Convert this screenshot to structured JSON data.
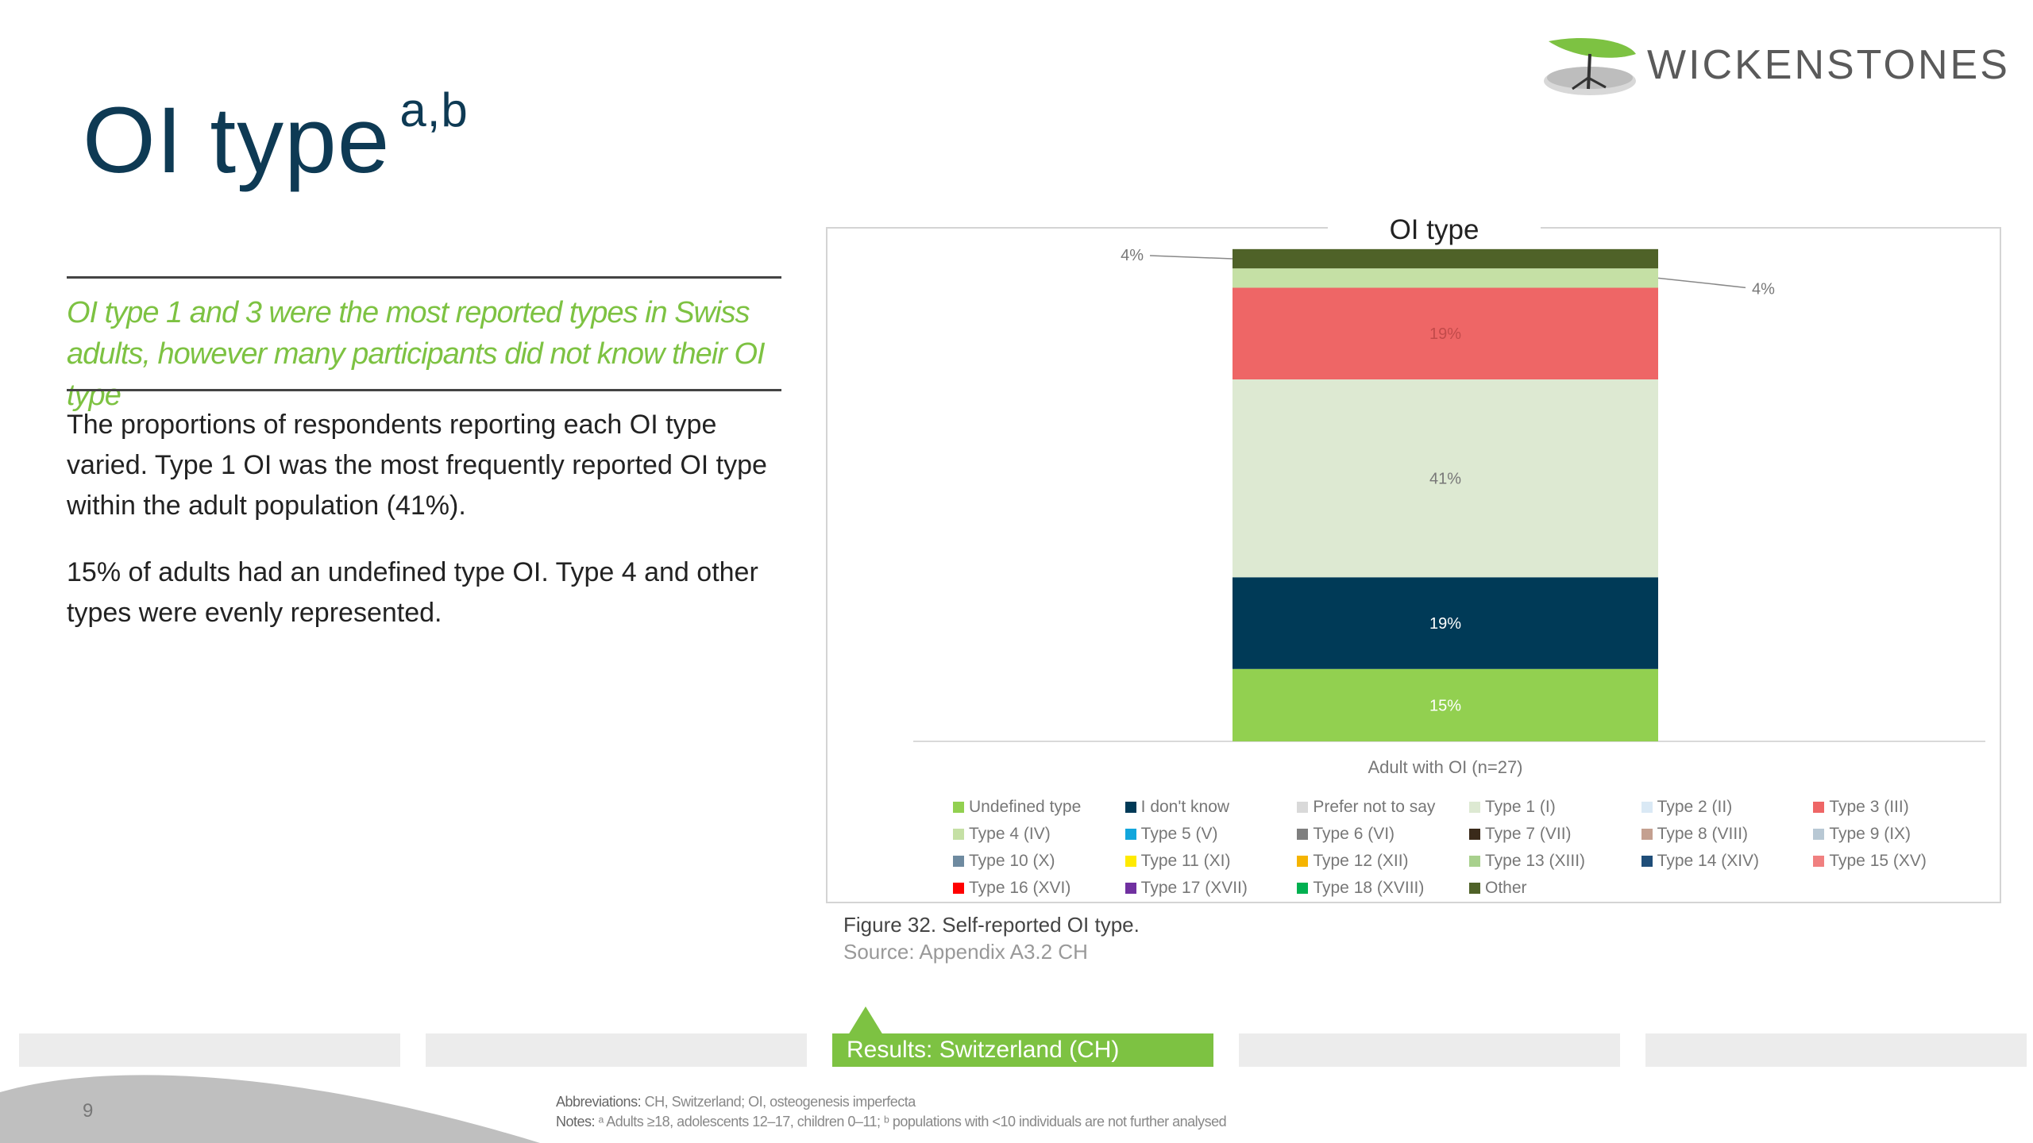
{
  "title": {
    "main": "OI type",
    "superscript": "a,b"
  },
  "logo": {
    "name": "WICKENSTONES"
  },
  "subheading": "OI type 1 and 3 were the most reported types in Swiss adults, however many participants did not know their OI type",
  "paragraphs": [
    "The proportions of respondents reporting each OI type varied. Type 1 OI was the most frequently reported OI type within the adult population (41%).",
    "15% of adults had an undefined type OI. Type 4 and other types were evenly represented."
  ],
  "figure": {
    "caption": "Figure 32. Self-reported OI type.",
    "source": "Source: Appendix A3.2 CH"
  },
  "nav": {
    "segments": [
      "",
      "",
      "Results: Switzerland (CH)",
      "",
      ""
    ],
    "active_index": 2
  },
  "footer": {
    "page_number": "9",
    "abbreviations_label": "Abbreviations:",
    "abbreviations_text": "CH, Switzerland; OI, osteogenesis imperfecta",
    "notes_label": "Notes:",
    "notes_text": "ᵃ Adults ≥18, adolescents 12–17, children 0–11; ᵇ populations with <10 individuals are not further analysed"
  },
  "chart_data": {
    "type": "bar",
    "stacked": true,
    "title": "OI type",
    "categories": [
      "Adult with OI (n=27)"
    ],
    "ylim": [
      0,
      100
    ],
    "series": [
      {
        "name": "Undefined type",
        "color": "#92d050",
        "values": [
          15
        ],
        "label": "15%",
        "label_color": "#ffffff"
      },
      {
        "name": "I don't know",
        "color": "#003a57",
        "values": [
          19
        ],
        "label": "19%",
        "label_color": "#ffffff"
      },
      {
        "name": "Prefer not to say",
        "color": "#d9d9d9",
        "values": [
          0
        ],
        "label": ""
      },
      {
        "name": "Type 1 (I)",
        "color": "#dde9d2",
        "values": [
          41
        ],
        "label": "41%",
        "label_color": "#777777"
      },
      {
        "name": "Type 2 (II)",
        "color": "#dae9f5",
        "values": [
          0
        ],
        "label": ""
      },
      {
        "name": "Type 3 (III)",
        "color": "#ee6666",
        "values": [
          19
        ],
        "label": "19%",
        "label_color": "#c24a4a"
      },
      {
        "name": "Type 4 (IV)",
        "color": "#c5e0a5",
        "values": [
          4
        ],
        "label": "4%",
        "label_side": "right"
      },
      {
        "name": "Type 5 (V)",
        "color": "#12a6dc",
        "values": [
          0
        ],
        "label": ""
      },
      {
        "name": "Type 6 (VI)",
        "color": "#7f7f7f",
        "values": [
          0
        ],
        "label": ""
      },
      {
        "name": "Type 7 (VII)",
        "color": "#3a2a1a",
        "values": [
          0
        ],
        "label": ""
      },
      {
        "name": "Type 8 (VIII)",
        "color": "#c4a090",
        "values": [
          0
        ],
        "label": ""
      },
      {
        "name": "Type 9 (IX)",
        "color": "#b8c8d4",
        "values": [
          0
        ],
        "label": ""
      },
      {
        "name": "Type 10 (X)",
        "color": "#6e8aa0",
        "values": [
          0
        ],
        "label": ""
      },
      {
        "name": "Type 11 (XI)",
        "color": "#ffea00",
        "values": [
          0
        ],
        "label": ""
      },
      {
        "name": "Type 12 (XII)",
        "color": "#f5b400",
        "values": [
          0
        ],
        "label": ""
      },
      {
        "name": "Type 13 (XIII)",
        "color": "#a8d08d",
        "values": [
          0
        ],
        "label": ""
      },
      {
        "name": "Type 14 (XIV)",
        "color": "#1f4e79",
        "values": [
          0
        ],
        "label": ""
      },
      {
        "name": "Type 15 (XV)",
        "color": "#f08080",
        "values": [
          0
        ],
        "label": ""
      },
      {
        "name": "Type 16 (XVI)",
        "color": "#ff0000",
        "values": [
          0
        ],
        "label": ""
      },
      {
        "name": "Type 17 (XVII)",
        "color": "#7030a0",
        "values": [
          0
        ],
        "label": ""
      },
      {
        "name": "Type 18 (XVIII)",
        "color": "#00b050",
        "values": [
          0
        ],
        "label": ""
      },
      {
        "name": "Other",
        "color": "#4f6228",
        "values": [
          4
        ],
        "label": "4%",
        "label_side": "left"
      }
    ]
  }
}
